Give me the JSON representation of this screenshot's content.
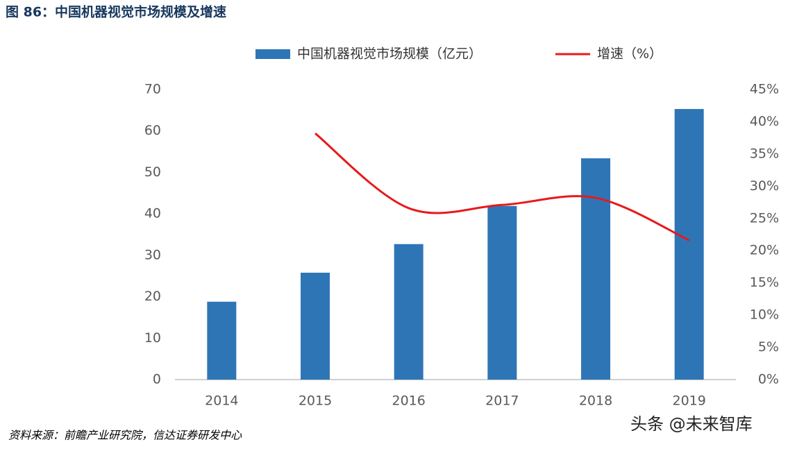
{
  "title": "图 86：中国机器视觉市场规模及增速",
  "source": "资料来源：前瞻产业研究院，信达证券研发中心",
  "watermark": "头条 @未来智库",
  "chart_data": {
    "type": "bar-line",
    "categories": [
      "2014",
      "2015",
      "2016",
      "2017",
      "2018",
      "2019"
    ],
    "series": [
      {
        "name": "中国机器视觉市场规模（亿元）",
        "type": "bar",
        "color": "#2e75b6",
        "values": [
          18.8,
          25.8,
          32.7,
          41.9,
          53.4,
          65.3
        ]
      },
      {
        "name": "增速（%）",
        "type": "line",
        "axis": "y2",
        "color": "#e8191a",
        "values": [
          null,
          38.2,
          26.6,
          27.1,
          28.2,
          21.6
        ]
      }
    ],
    "ylim": [
      0,
      70
    ],
    "yticks": [
      0,
      10,
      20,
      30,
      40,
      50,
      60,
      70
    ],
    "y2lim": [
      0,
      45
    ],
    "y2ticks": [
      {
        "value": 0,
        "label": "0%"
      },
      {
        "value": 5,
        "label": "5%"
      },
      {
        "value": 10,
        "label": "10%"
      },
      {
        "value": 15,
        "label": "15%"
      },
      {
        "value": 20,
        "label": "20%"
      },
      {
        "value": 25,
        "label": "25%"
      },
      {
        "value": 30,
        "label": "30%"
      },
      {
        "value": 35,
        "label": "35%"
      },
      {
        "value": 40,
        "label": "40%"
      },
      {
        "value": 45,
        "label": "45%"
      }
    ],
    "legend": "top",
    "grid": false
  }
}
